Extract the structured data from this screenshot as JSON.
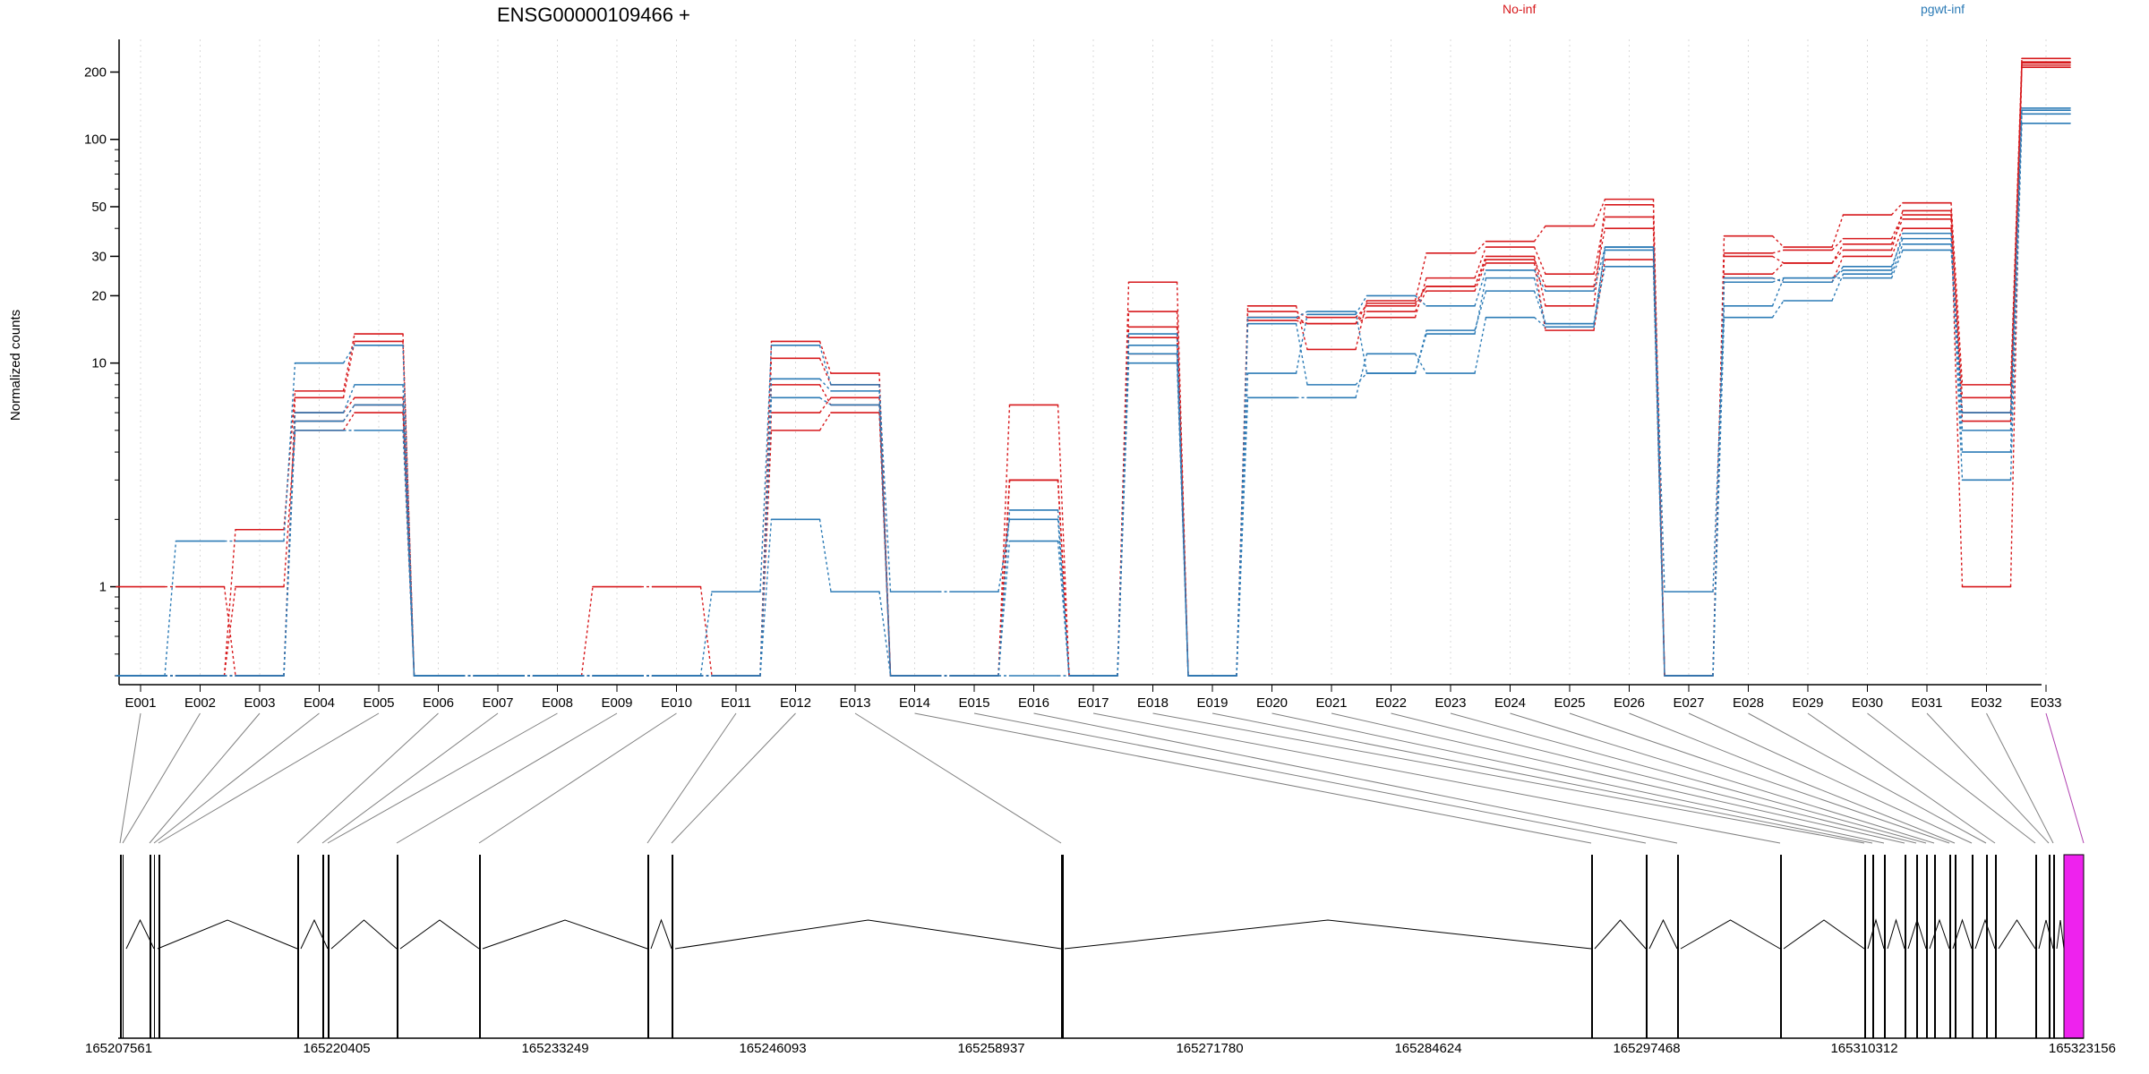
{
  "chart_data": {
    "type": "line",
    "title": "ENSG00000109466 +",
    "ylabel": "Normalized counts",
    "xlabel": "",
    "y_scale": "log",
    "ylim": [
      0.4,
      280
    ],
    "y_ticks": [
      {
        "value": 1,
        "label": "1"
      },
      {
        "value": 10,
        "label": "10"
      },
      {
        "value": 20,
        "label": "20"
      },
      {
        "value": 30,
        "label": "30"
      },
      {
        "value": 50,
        "label": "50"
      },
      {
        "value": 100,
        "label": "100"
      },
      {
        "value": 200,
        "label": "200"
      }
    ],
    "grid": "vertical dotted",
    "legend_position": "top-right",
    "legend": [
      {
        "label": "No-inf",
        "color": "#D7191C"
      },
      {
        "label": "pgwt-inf",
        "color": "#2C7BB6"
      }
    ],
    "categories": [
      "E001",
      "E002",
      "E003",
      "E004",
      "E005",
      "E006",
      "E007",
      "E008",
      "E009",
      "E010",
      "E011",
      "E012",
      "E013",
      "E014",
      "E015",
      "E016",
      "E017",
      "E018",
      "E019",
      "E020",
      "E021",
      "E022",
      "E023",
      "E024",
      "E025",
      "E026",
      "E027",
      "E028",
      "E029",
      "E030",
      "E031",
      "E032",
      "E033"
    ],
    "series": [
      {
        "group": "No-inf",
        "color": "#D7191C",
        "values": [
          1,
          1,
          0.4,
          6.0,
          7.0,
          0.4,
          0.4,
          0.4,
          0.4,
          0.4,
          0.4,
          5.0,
          6.0,
          0.4,
          0.4,
          3.0,
          0.4,
          11.0,
          0.4,
          16,
          15,
          17,
          21,
          28,
          14,
          29,
          0.4,
          24,
          23,
          30,
          40,
          6.0,
          210
        ]
      },
      {
        "group": "No-inf",
        "color": "#D7191C",
        "values": [
          0.4,
          0.4,
          1,
          5.0,
          6.0,
          0.4,
          0.4,
          0.4,
          1,
          1,
          0.4,
          6.0,
          7.0,
          0.4,
          0.4,
          3.0,
          0.4,
          13.0,
          0.4,
          17,
          16,
          18,
          22,
          29,
          22,
          40,
          0.4,
          30,
          28,
          34,
          44,
          1,
          220
        ]
      },
      {
        "group": "No-inf",
        "color": "#D7191C",
        "values": [
          0.4,
          0.4,
          1.8,
          7.5,
          13.5,
          0.4,
          0.4,
          0.4,
          0.4,
          0.4,
          0.4,
          12.5,
          9.0,
          0.4,
          0.4,
          6.5,
          0.4,
          23.0,
          0.4,
          18,
          11.5,
          19,
          31,
          35,
          41,
          54,
          0.4,
          37,
          33,
          46,
          52,
          8.0,
          230
        ]
      },
      {
        "group": "No-inf",
        "color": "#D7191C",
        "values": [
          0.4,
          0.4,
          0.4,
          7.0,
          12.5,
          0.4,
          0.4,
          0.4,
          0.4,
          0.4,
          0.4,
          10.5,
          8.0,
          0.4,
          0.4,
          3.0,
          0.4,
          17.0,
          0.4,
          16,
          15,
          16,
          24,
          33,
          25,
          45,
          0.4,
          31,
          32,
          36,
          46,
          7.0,
          222
        ]
      },
      {
        "group": "No-inf",
        "color": "#D7191C",
        "values": [
          0.4,
          0.4,
          0.4,
          5.5,
          6.5,
          0.4,
          0.4,
          0.4,
          0.4,
          0.4,
          0.4,
          8.0,
          6.5,
          0.4,
          0.4,
          3.0,
          0.4,
          14.5,
          0.4,
          15.5,
          15,
          18.5,
          22,
          30,
          18,
          51,
          0.4,
          25,
          28,
          32,
          48,
          5.5,
          215
        ]
      },
      {
        "group": "pgwt-inf",
        "color": "#2C7BB6",
        "values": [
          0.4,
          1.6,
          1.6,
          10,
          12,
          0.4,
          0.4,
          0.4,
          0.4,
          0.4,
          0.95,
          12,
          8,
          0.95,
          0.95,
          2,
          0.4,
          10,
          0.4,
          9,
          16.5,
          20,
          18,
          26,
          21,
          33,
          0.95,
          18,
          24,
          26,
          38,
          3,
          118
        ]
      },
      {
        "group": "pgwt-inf",
        "color": "#2C7BB6",
        "values": [
          0.4,
          0.4,
          0.4,
          5,
          5,
          0.4,
          0.4,
          0.4,
          0.4,
          0.4,
          0.4,
          7,
          6.5,
          0.4,
          0.4,
          1.6,
          0.4,
          12,
          0.4,
          15,
          8,
          9,
          14,
          21,
          15,
          27,
          0.4,
          16,
          19,
          25,
          34,
          4,
          135
        ]
      },
      {
        "group": "pgwt-inf",
        "color": "#2C7BB6",
        "values": [
          0.4,
          0.4,
          0.4,
          6,
          8,
          0.4,
          0.4,
          0.4,
          0.4,
          0.4,
          0.4,
          2,
          0.95,
          0.4,
          0.4,
          0.4,
          0.4,
          13.5,
          0.4,
          7,
          7,
          11,
          9,
          16,
          14.5,
          33,
          0.4,
          23,
          24,
          24,
          32,
          6,
          138
        ]
      },
      {
        "group": "pgwt-inf",
        "color": "#2C7BB6",
        "values": [
          0.4,
          0.4,
          0.4,
          5.5,
          6.5,
          0.4,
          0.4,
          0.4,
          0.4,
          0.4,
          0.4,
          8.5,
          7.5,
          0.4,
          0.4,
          2.2,
          0.4,
          11,
          0.4,
          16,
          17,
          9,
          13.5,
          24,
          15,
          32,
          0.4,
          24,
          23,
          27,
          36,
          5,
          130
        ]
      }
    ],
    "gene_model": {
      "x_ticks": [
        "165207561",
        "165220405",
        "165233249",
        "165246093",
        "165258937",
        "165271780",
        "165284624",
        "165297468",
        "165310312",
        "165323156"
      ],
      "highlighted_exon": "E033",
      "highlight_color": "#EE22EE",
      "exon_color": "#000000"
    }
  }
}
